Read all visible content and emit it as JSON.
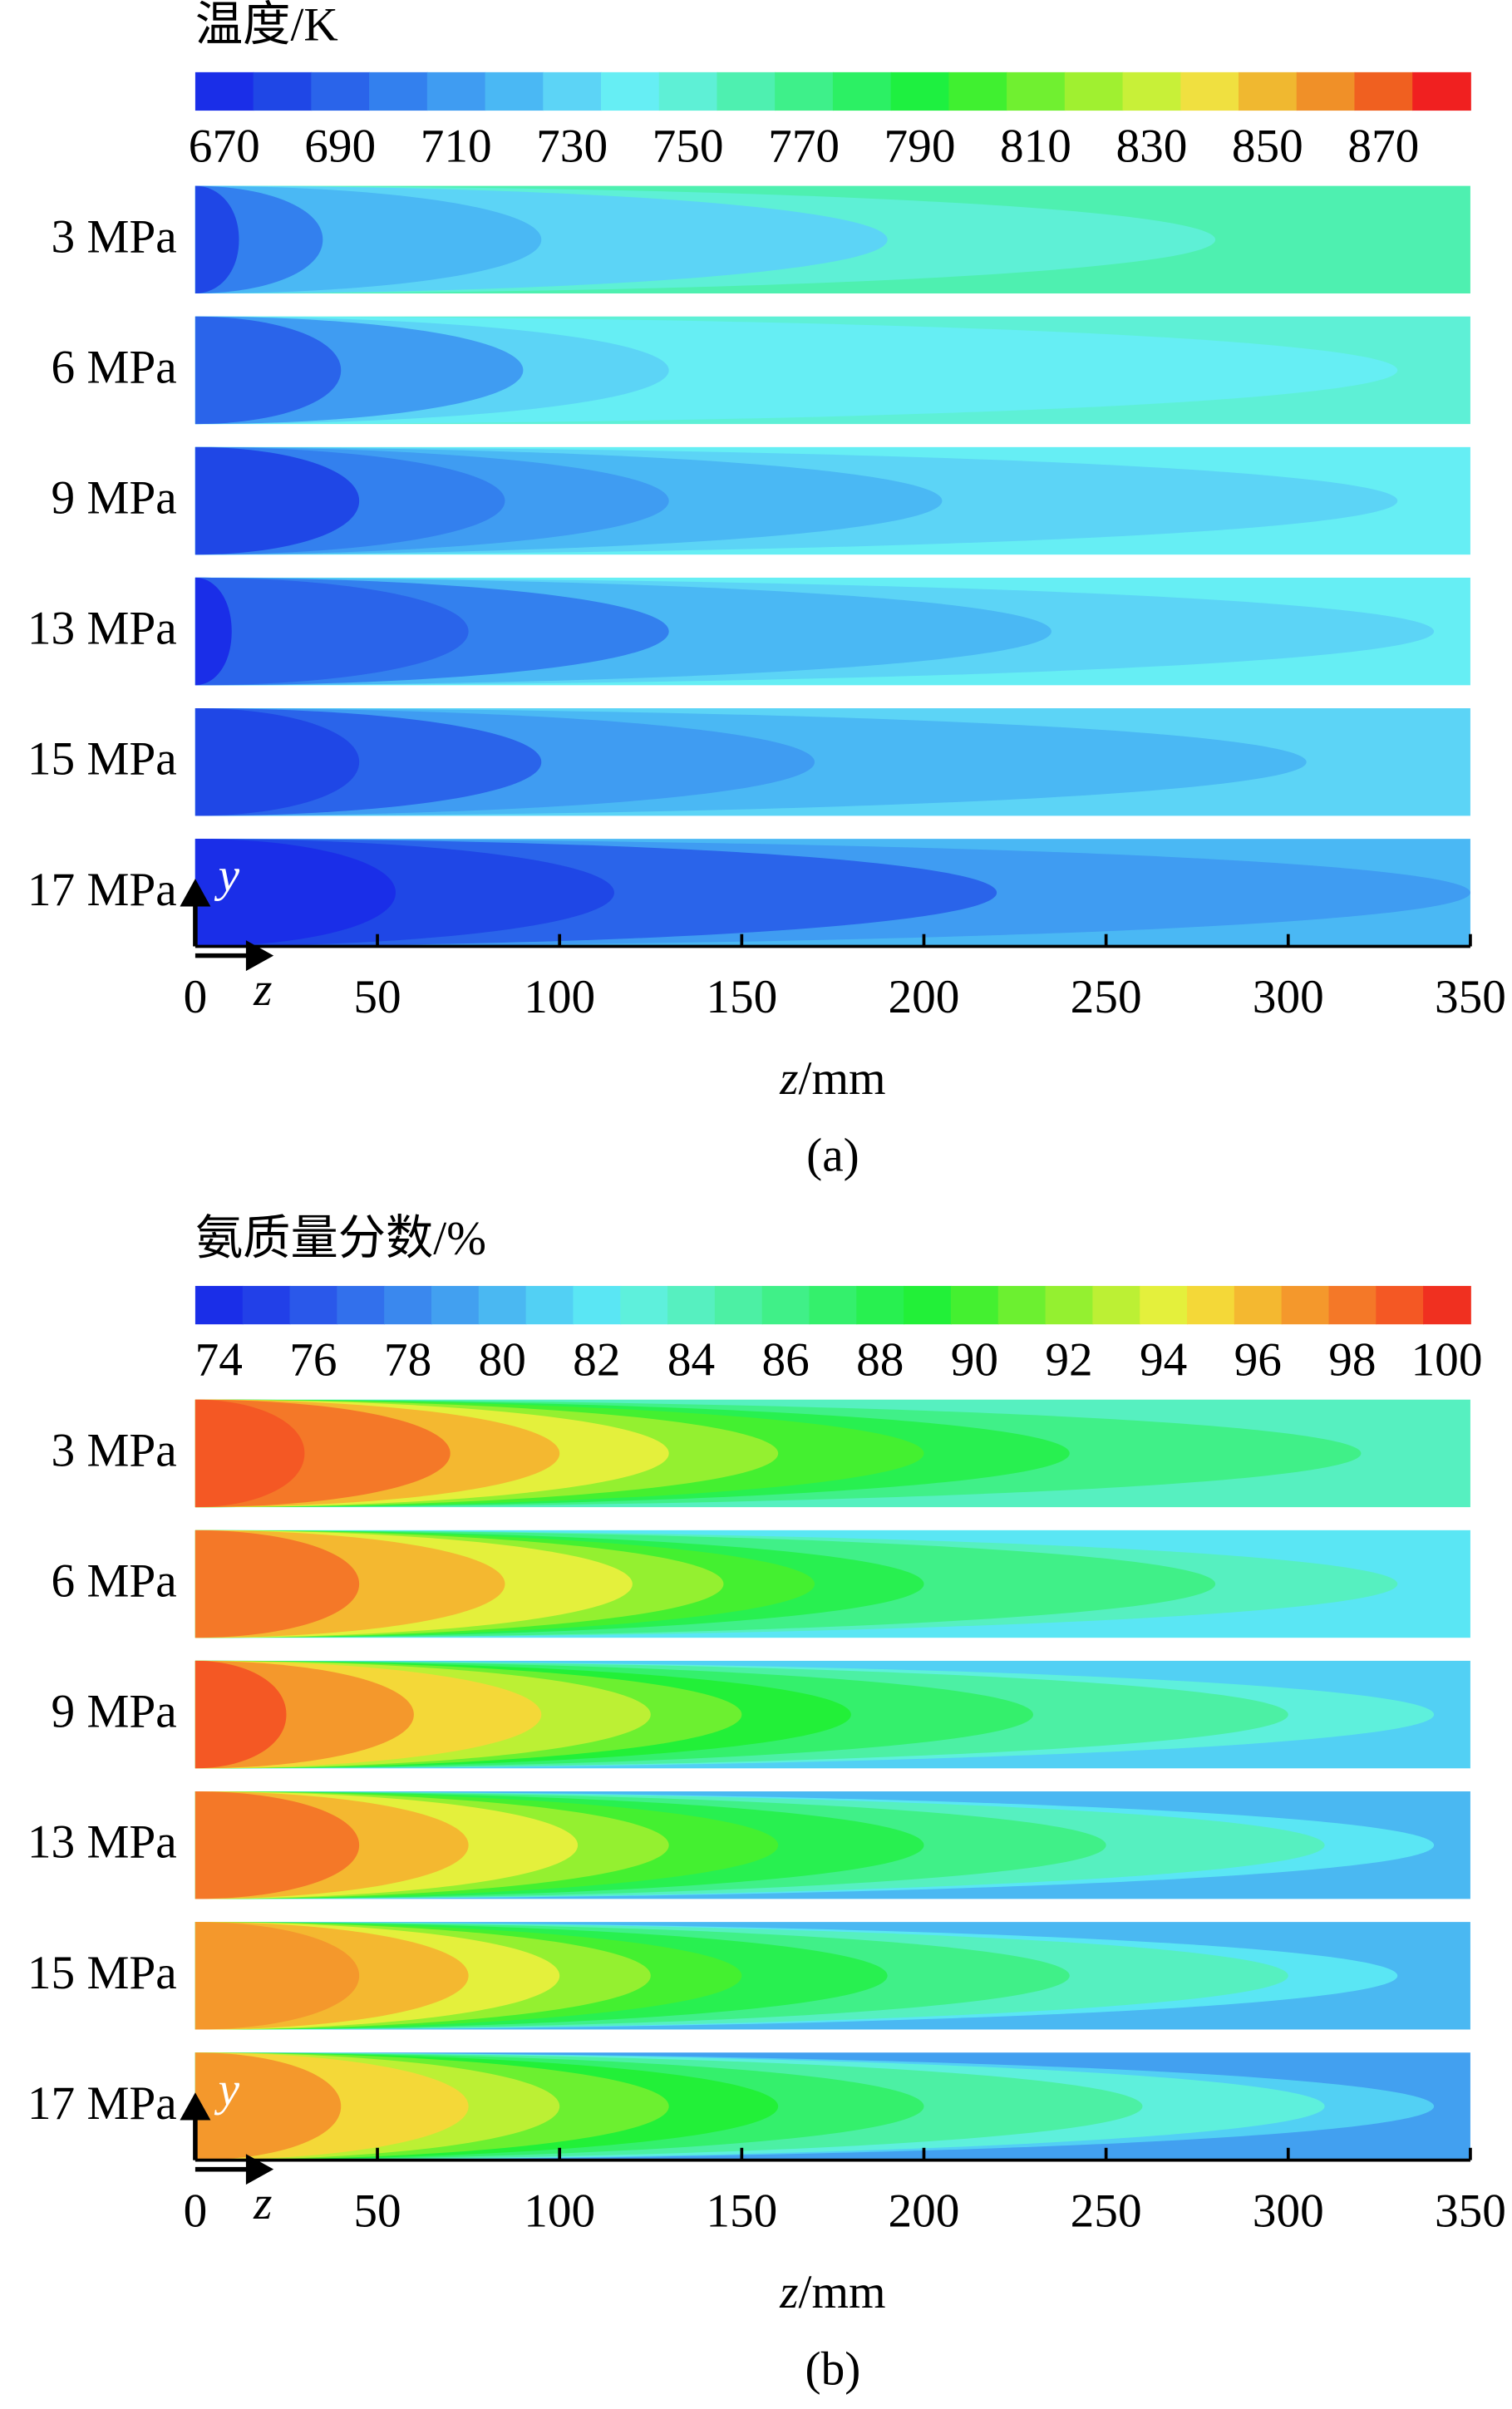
{
  "chart_data": [
    {
      "type": "contour",
      "title": "温度/K",
      "xlabel_var": "z",
      "xlabel_unit": "/mm",
      "caption": "(a)",
      "axis_glyphs": [
        "y",
        "z"
      ],
      "clim": [
        665,
        885
      ],
      "colors": [
        "#1a2ee8",
        "#1f47e6",
        "#2a64ea",
        "#3380ee",
        "#3f9cf2",
        "#4ab8f4",
        "#5cd4f6",
        "#66eef4",
        "#5ef0d6",
        "#4ef0b0",
        "#3ef08a",
        "#2cf064",
        "#1ef040",
        "#40f030",
        "#70f030",
        "#a0f030",
        "#c8f038",
        "#f0e040",
        "#f0b830",
        "#f09028",
        "#f06020",
        "#f02020"
      ],
      "cticks": [
        670,
        690,
        710,
        730,
        750,
        770,
        790,
        810,
        830,
        850,
        870
      ],
      "xlim": [
        0,
        350
      ],
      "xticks": [
        0,
        50,
        100,
        150,
        200,
        250,
        300,
        350
      ],
      "rows": [
        {
          "label": "3 MPa",
          "base": 755,
          "tips": [
            [
              745,
              280
            ],
            [
              730,
              190
            ],
            [
              715,
              95
            ],
            [
              695,
              35
            ],
            [
              680,
              12
            ]
          ]
        },
        {
          "label": "6 MPa",
          "base": 745,
          "tips": [
            [
              735,
              330
            ],
            [
              725,
              130
            ],
            [
              705,
              90
            ],
            [
              690,
              40
            ]
          ]
        },
        {
          "label": "9 MPa",
          "base": 740,
          "tips": [
            [
              730,
              330
            ],
            [
              720,
              205
            ],
            [
              705,
              130
            ],
            [
              695,
              85
            ],
            [
              680,
              45
            ]
          ]
        },
        {
          "label": "13 MPa",
          "base": 735,
          "tips": [
            [
              725,
              340
            ],
            [
              715,
              235
            ],
            [
              700,
              130
            ],
            [
              685,
              75
            ],
            [
              672,
              10
            ]
          ]
        },
        {
          "label": "15 MPa",
          "base": 730,
          "tips": [
            [
              718,
              305
            ],
            [
              705,
              170
            ],
            [
              690,
              95
            ],
            [
              678,
              45
            ]
          ]
        },
        {
          "label": "17 MPa",
          "base": 720,
          "tips": [
            [
              705,
              350
            ],
            [
              692,
              220
            ],
            [
              680,
              115
            ],
            [
              670,
              55
            ]
          ]
        }
      ]
    },
    {
      "type": "contour",
      "title": "氨质量分数/%",
      "xlabel_var": "z",
      "xlabel_unit": "/mm",
      "caption": "(b)",
      "axis_glyphs": [
        "y",
        "z"
      ],
      "clim": [
        73.5,
        100.5
      ],
      "colors": [
        "#1a2ee8",
        "#2240e8",
        "#2a58ea",
        "#3270ec",
        "#3a88ee",
        "#42a0f0",
        "#4ab8f2",
        "#52d0f4",
        "#5ae6f4",
        "#5ef0dc",
        "#56f0c0",
        "#4cf0a4",
        "#40f088",
        "#34f06c",
        "#28f050",
        "#22f038",
        "#44f030",
        "#6cf030",
        "#94f030",
        "#bcf034",
        "#e4f03c",
        "#f4d838",
        "#f4b830",
        "#f4982c",
        "#f47828",
        "#f45824",
        "#f03020"
      ],
      "cticks": [
        74,
        76,
        78,
        80,
        82,
        84,
        86,
        88,
        90,
        92,
        94,
        96,
        98,
        100
      ],
      "xlim": [
        0,
        350
      ],
      "xticks": [
        0,
        50,
        100,
        150,
        200,
        250,
        300,
        350
      ],
      "rows": [
        {
          "label": "3 MPa",
          "base": 84,
          "tips": [
            [
              86,
              320
            ],
            [
              88,
              240
            ],
            [
              90,
              200
            ],
            [
              92,
              160
            ],
            [
              94,
              130
            ],
            [
              96,
              100
            ],
            [
              98,
              70
            ],
            [
              99,
              30
            ]
          ]
        },
        {
          "label": "6 MPa",
          "base": 82,
          "tips": [
            [
              84,
              330
            ],
            [
              86,
              280
            ],
            [
              88,
              200
            ],
            [
              90,
              170
            ],
            [
              92,
              145
            ],
            [
              94,
              120
            ],
            [
              96,
              85
            ],
            [
              98,
              45
            ]
          ]
        },
        {
          "label": "9 MPa",
          "base": 81,
          "tips": [
            [
              83,
              340
            ],
            [
              85,
              300
            ],
            [
              87,
              230
            ],
            [
              89,
              180
            ],
            [
              91,
              150
            ],
            [
              93,
              125
            ],
            [
              95,
              95
            ],
            [
              97,
              60
            ],
            [
              99,
              25
            ]
          ]
        },
        {
          "label": "13 MPa",
          "base": 80,
          "tips": [
            [
              82,
              340
            ],
            [
              84,
              310
            ],
            [
              86,
              250
            ],
            [
              88,
              200
            ],
            [
              90,
              160
            ],
            [
              92,
              130
            ],
            [
              94,
              105
            ],
            [
              96,
              75
            ],
            [
              98,
              45
            ]
          ]
        },
        {
          "label": "15 MPa",
          "base": 80,
          "tips": [
            [
              82,
              330
            ],
            [
              84,
              300
            ],
            [
              86,
              240
            ],
            [
              88,
              190
            ],
            [
              90,
              150
            ],
            [
              92,
              125
            ],
            [
              94,
              100
            ],
            [
              96,
              75
            ],
            [
              97,
              45
            ]
          ]
        },
        {
          "label": "17 MPa",
          "base": 79,
          "tips": [
            [
              81,
              340
            ],
            [
              83,
              310
            ],
            [
              85,
              260
            ],
            [
              87,
              200
            ],
            [
              89,
              160
            ],
            [
              91,
              130
            ],
            [
              93,
              100
            ],
            [
              95,
              75
            ],
            [
              97,
              40
            ]
          ]
        }
      ]
    }
  ]
}
